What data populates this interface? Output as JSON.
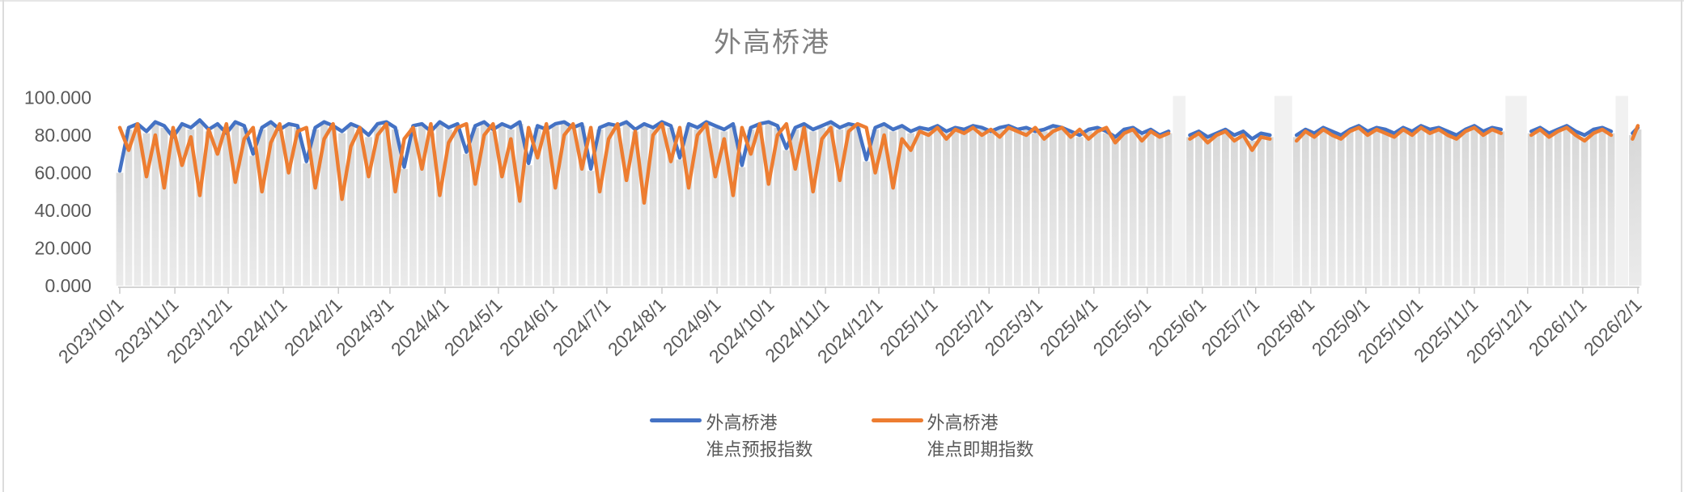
{
  "page": {
    "background": "#FFFFFF",
    "edge_line_color": "#DCDCDC"
  },
  "chart_data": {
    "type": "line",
    "title": "外高桥港",
    "title_color": "#7F7F7F",
    "label_color": "#595959",
    "axis_color": "#C6C6C6",
    "gap_band_color": "#F1F1F1",
    "grid": false,
    "legend_position": "bottom",
    "ylim": [
      0,
      100
    ],
    "yticks": [
      {
        "value": 100,
        "label": "100.000"
      },
      {
        "value": 80,
        "label": "80.000"
      },
      {
        "value": 60,
        "label": "60.000"
      },
      {
        "value": 40,
        "label": "40.000"
      },
      {
        "value": 20,
        "label": "20.000"
      },
      {
        "value": 0,
        "label": "0.000"
      }
    ],
    "xticks": [
      {
        "day": 0,
        "label": "2023/10/1"
      },
      {
        "day": 31,
        "label": "2023/11/1"
      },
      {
        "day": 61,
        "label": "2023/12/1"
      },
      {
        "day": 92,
        "label": "2024/1/1"
      },
      {
        "day": 123,
        "label": "2024/2/1"
      },
      {
        "day": 152,
        "label": "2024/3/1"
      },
      {
        "day": 183,
        "label": "2024/4/1"
      },
      {
        "day": 213,
        "label": "2024/5/1"
      },
      {
        "day": 244,
        "label": "2024/6/1"
      },
      {
        "day": 274,
        "label": "2024/7/1"
      },
      {
        "day": 305,
        "label": "2024/8/1"
      },
      {
        "day": 336,
        "label": "2024/9/1"
      },
      {
        "day": 366,
        "label": "2024/10/1"
      },
      {
        "day": 397,
        "label": "2024/11/1"
      },
      {
        "day": 427,
        "label": "2024/12/1"
      },
      {
        "day": 458,
        "label": "2025/1/1"
      },
      {
        "day": 489,
        "label": "2025/2/1"
      },
      {
        "day": 517,
        "label": "2025/3/1"
      },
      {
        "day": 548,
        "label": "2025/4/1"
      },
      {
        "day": 578,
        "label": "2025/5/1"
      },
      {
        "day": 609,
        "label": "2025/6/1"
      },
      {
        "day": 639,
        "label": "2025/7/1"
      },
      {
        "day": 670,
        "label": "2025/8/1"
      },
      {
        "day": 701,
        "label": "2025/9/1"
      },
      {
        "day": 731,
        "label": "2025/10/1"
      },
      {
        "day": 762,
        "label": "2025/11/1"
      },
      {
        "day": 792,
        "label": "2025/12/1"
      },
      {
        "day": 823,
        "label": "2026/1/1"
      },
      {
        "day": 854,
        "label": "2026/2/1"
      }
    ],
    "total_days": 854,
    "step_days": 5,
    "series": [
      {
        "name": "外高桥港准点预报指数",
        "key": "forecast",
        "color": "#4472C4"
      },
      {
        "name": "外高桥港准点即期指数",
        "key": "spot",
        "color": "#ED7D31"
      }
    ],
    "background_bars": {
      "follows": "forecast",
      "top_color": "#D8D8D8",
      "bottom_color": "#EBEBEB"
    },
    "segments": [
      {
        "start_day": 0,
        "forecast": [
          61,
          84,
          86,
          82,
          87,
          85,
          79,
          86,
          84,
          88,
          83,
          86,
          81,
          87,
          85,
          70,
          84,
          87,
          83,
          86,
          85,
          66,
          84,
          87,
          85,
          82,
          86,
          84,
          80,
          86,
          87,
          84,
          63,
          85,
          86,
          82,
          87,
          84,
          86,
          71,
          85,
          87,
          83,
          86,
          84,
          87,
          65,
          85,
          83,
          86,
          87,
          84,
          86,
          62,
          84,
          86,
          85,
          87,
          83,
          86,
          84,
          87,
          85,
          68,
          86,
          84,
          87,
          85,
          83,
          86,
          64,
          84,
          86,
          87,
          85,
          73,
          84,
          86,
          83,
          85,
          87,
          84,
          86,
          85,
          67,
          84,
          86,
          83,
          85,
          82,
          84,
          83,
          85,
          82,
          84,
          83,
          85,
          84,
          82,
          84,
          85,
          83,
          84,
          82,
          83,
          85,
          84,
          82,
          80,
          83,
          84,
          82,
          79,
          83,
          84,
          81,
          83,
          80,
          82
        ],
        "spot": [
          84,
          72,
          86,
          58,
          80,
          52,
          84,
          64,
          79,
          48,
          83,
          70,
          86,
          55,
          78,
          84,
          50,
          76,
          86,
          60,
          82,
          84,
          52,
          78,
          86,
          46,
          74,
          84,
          58,
          80,
          86,
          50,
          78,
          84,
          62,
          86,
          48,
          76,
          84,
          86,
          54,
          80,
          86,
          58,
          78,
          45,
          84,
          68,
          86,
          52,
          80,
          86,
          62,
          84,
          50,
          78,
          86,
          56,
          82,
          44,
          80,
          86,
          66,
          84,
          52,
          80,
          86,
          58,
          78,
          48,
          84,
          70,
          86,
          54,
          80,
          86,
          62,
          84,
          50,
          78,
          84,
          56,
          82,
          86,
          84,
          60,
          80,
          52,
          78,
          72,
          82,
          80,
          84,
          78,
          83,
          81,
          84,
          80,
          83,
          79,
          84,
          82,
          80,
          84,
          78,
          82,
          84,
          79,
          83,
          78,
          82,
          84,
          76,
          81,
          83,
          77,
          82,
          79,
          81
        ]
      },
      {
        "start_day": 602,
        "forecast": [
          80,
          82,
          79,
          81,
          83,
          80,
          82,
          78,
          81,
          80
        ],
        "spot": [
          78,
          81,
          76,
          80,
          82,
          77,
          80,
          72,
          79,
          78
        ]
      },
      {
        "start_day": 662,
        "forecast": [
          80,
          83,
          81,
          84,
          82,
          80,
          83,
          85,
          82,
          84,
          83,
          81,
          84,
          82,
          85,
          83,
          84,
          82,
          80,
          83,
          85,
          82,
          84,
          83
        ],
        "spot": [
          77,
          82,
          79,
          83,
          80,
          78,
          82,
          84,
          80,
          83,
          81,
          79,
          83,
          80,
          84,
          81,
          83,
          80,
          78,
          82,
          84,
          80,
          83,
          81
        ]
      },
      {
        "start_day": 794,
        "forecast": [
          82,
          84,
          81,
          83,
          85,
          82,
          80,
          83,
          84,
          82
        ],
        "spot": [
          80,
          83,
          79,
          82,
          84,
          80,
          77,
          81,
          83,
          80
        ]
      },
      {
        "start_day": 851,
        "step_days": 3,
        "forecast": [
          81,
          84
        ],
        "spot": [
          78,
          85
        ]
      }
    ]
  },
  "legend": {
    "items": [
      {
        "line1": "外高桥港",
        "line2": "准点预报指数",
        "color": "#4472C4"
      },
      {
        "line1": "外高桥港",
        "line2": "准点即期指数",
        "color": "#ED7D31"
      }
    ]
  }
}
